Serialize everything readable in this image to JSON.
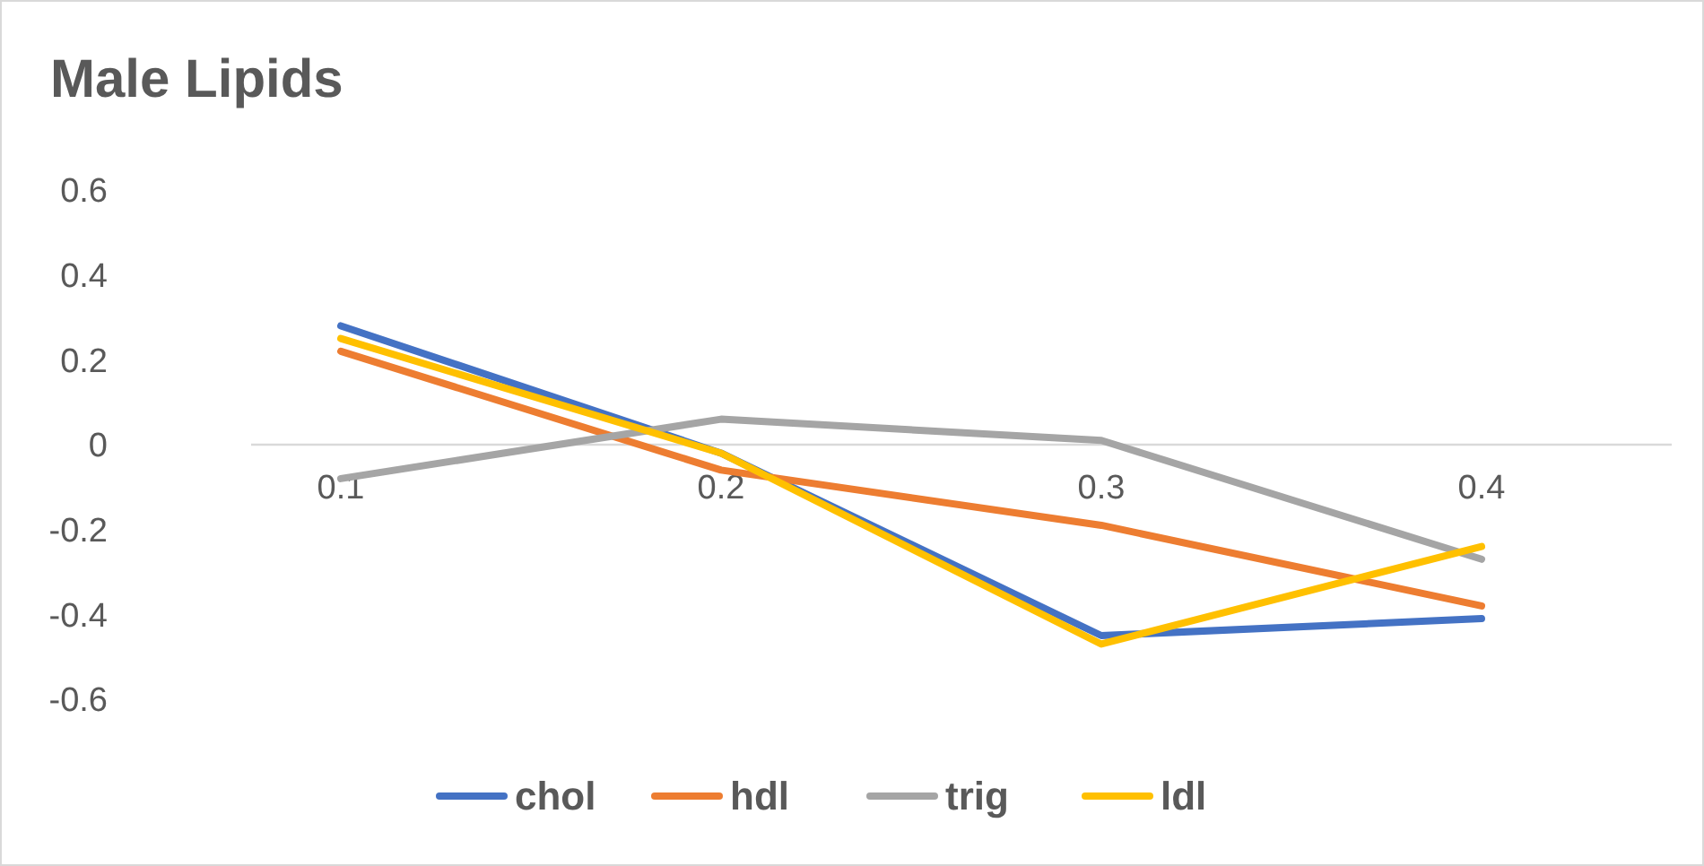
{
  "chart_data": {
    "type": "line",
    "title": "Male Lipids",
    "categories": [
      "0.1",
      "0.2",
      "0.3",
      "0.4"
    ],
    "series": [
      {
        "name": "chol",
        "color": "#4472c4",
        "values": [
          0.28,
          -0.02,
          -0.45,
          -0.41
        ]
      },
      {
        "name": "hdl",
        "color": "#ed7d31",
        "values": [
          0.22,
          -0.06,
          -0.19,
          -0.38
        ]
      },
      {
        "name": "trig",
        "color": "#a5a5a5",
        "values": [
          -0.08,
          0.06,
          0.01,
          -0.27
        ]
      },
      {
        "name": "ldl",
        "color": "#ffc000",
        "values": [
          0.25,
          -0.02,
          -0.47,
          -0.24
        ]
      }
    ],
    "ylim": [
      -0.6,
      0.6
    ],
    "yticks": [
      -0.6,
      -0.4,
      -0.2,
      0,
      0.2,
      0.4,
      0.6
    ],
    "grid": false,
    "legend": "bottom",
    "line_style": "solid"
  }
}
